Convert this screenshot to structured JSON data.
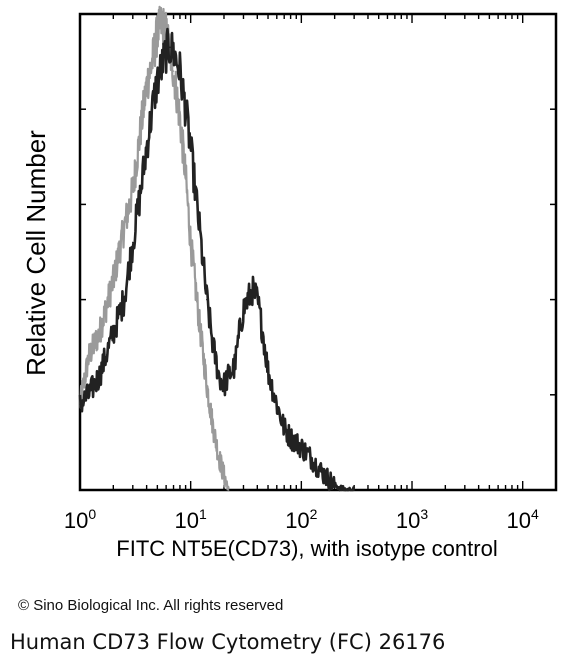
{
  "chart_data": {
    "type": "line",
    "title": "",
    "xlabel": "FITC NT5E(CD73), with isotype control",
    "ylabel": "Relative Cell Number",
    "x_scale": "log",
    "xlim": [
      1,
      20000
    ],
    "ylim": [
      0,
      100
    ],
    "x_ticks": [
      {
        "value": 1,
        "base": "10",
        "exp": "0"
      },
      {
        "value": 10,
        "base": "10",
        "exp": "1"
      },
      {
        "value": 100,
        "base": "10",
        "exp": "2"
      },
      {
        "value": 1000,
        "base": "10",
        "exp": "3"
      },
      {
        "value": 10000,
        "base": "10",
        "exp": "4"
      }
    ],
    "series": [
      {
        "role": "isotype control",
        "color": "#9a9a9a",
        "x": [
          1,
          1.2,
          1.5,
          2,
          2.5,
          3,
          3.5,
          4,
          4.5,
          5,
          5.5,
          6,
          6.5,
          7,
          8,
          9,
          10,
          12,
          14,
          16,
          18,
          20,
          22
        ],
        "y": [
          18,
          28,
          33,
          44,
          55,
          63,
          75,
          85,
          90,
          96,
          98,
          96,
          92,
          88,
          78,
          66,
          52,
          35,
          22,
          13,
          7,
          3,
          0
        ]
      },
      {
        "role": "NT5E(CD73)",
        "color": "#222222",
        "x": [
          1,
          1.2,
          1.5,
          2,
          2.5,
          3,
          3.5,
          4,
          4.5,
          5,
          5.5,
          6,
          6.5,
          7,
          8,
          9,
          10,
          12,
          14,
          16,
          18,
          20,
          22,
          25,
          28,
          30,
          33,
          36,
          40,
          45,
          50,
          60,
          70,
          80,
          100,
          120,
          150,
          200,
          250,
          300
        ],
        "y": [
          18,
          20,
          24,
          33,
          40,
          52,
          62,
          72,
          80,
          86,
          89,
          92,
          93,
          92,
          88,
          80,
          72,
          55,
          40,
          30,
          24,
          22,
          24,
          26,
          34,
          38,
          40,
          42,
          40,
          33,
          25,
          18,
          13,
          11,
          9,
          7,
          4,
          1,
          0,
          0
        ]
      }
    ]
  },
  "footer": {
    "copyright": "© Sino Biological Inc. All rights reserved",
    "caption": "Human CD73 Flow Cytometry (FC) 26176"
  }
}
